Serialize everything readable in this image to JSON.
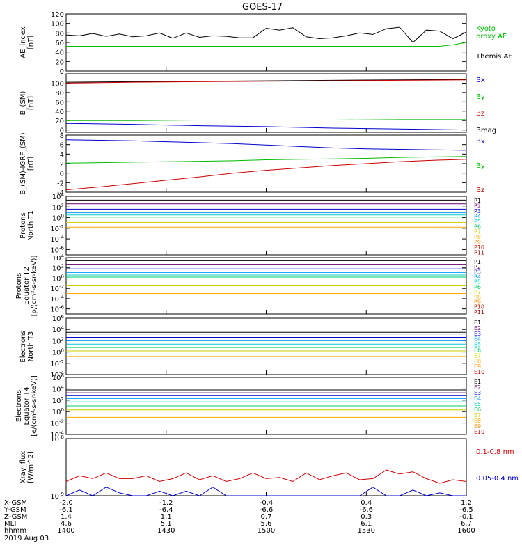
{
  "title": "GOES-17",
  "colors": {
    "black": "#000000",
    "red": "#cc0000",
    "green": "#00bb00",
    "blue": "#0000cc",
    "p_colors": [
      "#000000",
      "#660066",
      "#0000cc",
      "#0099ff",
      "#00cccc",
      "#00cc66",
      "#cccc00",
      "#ffaa00",
      "#ff8800",
      "#cc2200",
      "#990000"
    ],
    "e_colors": [
      "#000000",
      "#660066",
      "#0000cc",
      "#0099ff",
      "#00cccc",
      "#00cc66",
      "#cccc00",
      "#ffaa00",
      "#ff8800",
      "#cc0000"
    ]
  },
  "footer": {
    "rows": [
      {
        "label": "X-GSM",
        "values": [
          "-2.0",
          "-1.2",
          "-0.4",
          "0.4",
          "1.2"
        ]
      },
      {
        "label": "Y-GSM",
        "values": [
          "-6.1",
          "-6.4",
          "-6.6",
          "-6.6",
          "-6.5"
        ]
      },
      {
        "label": "Z-GSM",
        "values": [
          "1.4",
          "1.1",
          "0.7",
          "0.3",
          "-0.1"
        ]
      },
      {
        "label": "MLT",
        "values": [
          "4.6",
          "5.1",
          "5.6",
          "6.1",
          "6.7"
        ]
      },
      {
        "label": "hhmm",
        "values": [
          "1400",
          "1430",
          "1500",
          "1530",
          "1600"
        ]
      }
    ],
    "date": "2019 Aug 03"
  },
  "chart_data": [
    {
      "type": "line",
      "ylabel": [
        "AE_index",
        "[nT]"
      ],
      "ylim": [
        0,
        120
      ],
      "yticks": [
        "0",
        "20",
        "40",
        "60",
        "80",
        "100",
        "120"
      ],
      "legend": [
        {
          "text": "Kyoto",
          "color": "#00bb00"
        },
        {
          "text": "proxy AE",
          "color": "#00bb00"
        },
        {
          "text": "Themis AE",
          "color": "#000000"
        }
      ],
      "x": [
        0,
        4,
        8,
        12,
        16,
        20,
        24,
        28,
        32,
        36,
        40,
        44,
        48,
        52,
        56,
        60,
        64,
        68,
        72,
        76,
        80,
        84,
        88,
        92,
        96,
        100,
        104,
        108,
        112,
        116,
        120
      ],
      "series": [
        {
          "color": "#000000",
          "values": [
            76,
            74,
            79,
            73,
            78,
            72,
            74,
            80,
            69,
            80,
            71,
            74,
            73,
            70,
            70,
            90,
            86,
            91,
            72,
            68,
            70,
            74,
            80,
            77,
            89,
            92,
            60,
            86,
            84,
            68,
            82
          ]
        },
        {
          "color": "#00bb00",
          "values": [
            52,
            52,
            52,
            52,
            52,
            52,
            52,
            52,
            52,
            52,
            52,
            52,
            52,
            52,
            52,
            52,
            52,
            52,
            52,
            52,
            52,
            52,
            52,
            52,
            52,
            52,
            52,
            52,
            52,
            55,
            60
          ]
        }
      ]
    },
    {
      "type": "line",
      "ylabel": [
        "B_(SM)",
        "[nT]"
      ],
      "ylim": [
        -5,
        120
      ],
      "yticks": [
        "0",
        "20",
        "40",
        "60",
        "80",
        "100"
      ],
      "legend": [
        {
          "text": "Bx",
          "color": "#0000cc"
        },
        {
          "text": "By",
          "color": "#00bb00"
        },
        {
          "text": "Bz",
          "color": "#cc0000"
        },
        {
          "text": "Bmag",
          "color": "#000000"
        }
      ],
      "x": [
        0,
        20,
        40,
        60,
        80,
        100,
        120
      ],
      "series": [
        {
          "color": "#000000",
          "values": [
            102,
            103,
            104,
            105,
            106,
            107,
            108
          ]
        },
        {
          "color": "#cc0000",
          "values": [
            100,
            102,
            103,
            104,
            105,
            106,
            107
          ]
        },
        {
          "color": "#00bb00",
          "values": [
            20,
            20,
            21,
            21,
            21,
            22,
            22
          ]
        },
        {
          "color": "#0000cc",
          "values": [
            14,
            12,
            9,
            7,
            4,
            2,
            0
          ]
        }
      ]
    },
    {
      "type": "line",
      "ylabel": [
        "B_(SM)-IGRF_(SM)",
        "[nT]"
      ],
      "ylim": [
        -4,
        8
      ],
      "yticks": [
        "-4",
        "-2",
        "0",
        "2",
        "4",
        "6",
        "8"
      ],
      "legend": [
        {
          "text": "Bx",
          "color": "#0000cc"
        },
        {
          "text": "By",
          "color": "#00bb00"
        },
        {
          "text": "Bz",
          "color": "#cc0000"
        }
      ],
      "x": [
        0,
        10,
        20,
        30,
        40,
        50,
        60,
        70,
        80,
        90,
        100,
        110,
        120
      ],
      "series": [
        {
          "color": "#0000cc",
          "values": [
            7.0,
            6.9,
            6.8,
            6.6,
            6.4,
            6.2,
            5.9,
            5.6,
            5.3,
            5.1,
            5.0,
            4.9,
            4.8
          ]
        },
        {
          "color": "#00bb00",
          "values": [
            2.1,
            2.2,
            2.3,
            2.4,
            2.5,
            2.6,
            2.8,
            2.9,
            3.0,
            3.1,
            3.3,
            3.4,
            3.5
          ]
        },
        {
          "color": "#cc0000",
          "values": [
            -3.5,
            -2.9,
            -2.2,
            -1.5,
            -0.8,
            0.0,
            0.6,
            1.1,
            1.6,
            2.0,
            2.4,
            2.7,
            2.9
          ]
        }
      ]
    },
    {
      "type": "line",
      "ylabel": [
        "Protons",
        "North T1"
      ],
      "yscale": "log",
      "ylim": [
        -7,
        4
      ],
      "yticks": [
        "10^4",
        "10^2",
        "10^0",
        "10^-2",
        "10^-4",
        "10^-6"
      ],
      "legend_labels": [
        "P1",
        "P2",
        "P3",
        "P4",
        "P5",
        "P6",
        "P7",
        "P8",
        "P9",
        "P10",
        "P11"
      ],
      "series_levels": [
        3.3,
        2.6,
        1.6,
        0.9,
        0.5,
        0.1,
        -0.9,
        -1.8
      ]
    },
    {
      "type": "line",
      "ylabel": [
        "Protons",
        "Equator T2",
        "[p/(cm²-s-sr-keV)]"
      ],
      "yscale": "log",
      "ylim": [
        -7,
        4
      ],
      "yticks": [
        "10^4",
        "10^2",
        "10^0",
        "10^-2",
        "10^-4",
        "10^-6"
      ],
      "legend_labels": [
        "P1",
        "P2",
        "P3",
        "P4",
        "P5",
        "P6",
        "P7",
        "P8",
        "P9",
        "P10",
        "P11"
      ],
      "series_levels": [
        3.4,
        2.7,
        1.8,
        1.1,
        0.6,
        0.2,
        -1.5,
        -3.0
      ]
    },
    {
      "type": "line",
      "ylabel": [
        "Electrons",
        "North T3"
      ],
      "yscale": "log",
      "ylim": [
        -4,
        6
      ],
      "yticks": [
        "10^6",
        "10^4",
        "10^2",
        "10^0",
        "10^-2",
        "10^-4"
      ],
      "legend_labels": [
        "E1",
        "E2",
        "E3",
        "E4",
        "E5",
        "E6",
        "E7",
        "E8",
        "E9",
        "E10"
      ],
      "series_levels": [
        3.5,
        3.2,
        2.6,
        2.0,
        1.4,
        0.8,
        0.2,
        -0.8
      ]
    },
    {
      "type": "line",
      "ylabel": [
        "Electrons",
        "Equator T4",
        "[e/(cm²-s-sr-keV)]"
      ],
      "yscale": "log",
      "ylim": [
        -4,
        6
      ],
      "yticks": [
        "10^6",
        "10^4",
        "10^2",
        "10^0",
        "10^-2",
        "10^-4"
      ],
      "legend_labels": [
        "E1",
        "E2",
        "E3",
        "E4",
        "E5",
        "E6",
        "E7",
        "E8",
        "E9",
        "E10"
      ],
      "series_levels": [
        3.8,
        3.3,
        2.8,
        2.3,
        1.7,
        1.0,
        0.3,
        -1.0
      ]
    },
    {
      "type": "line",
      "ylabel": [
        "Xray_flux",
        "[W/m^2]"
      ],
      "yscale": "log",
      "ylim": [
        -9,
        -8
      ],
      "yticks": [
        "10^-8",
        "10^-9"
      ],
      "legend": [
        {
          "text": "0.1-0.8 nm",
          "color": "#cc0000"
        },
        {
          "text": "0.05-0.4 nm",
          "color": "#0000cc"
        }
      ],
      "x": [
        0,
        4,
        8,
        12,
        16,
        20,
        24,
        28,
        32,
        36,
        40,
        44,
        48,
        52,
        56,
        60,
        64,
        68,
        72,
        76,
        80,
        84,
        88,
        92,
        96,
        100,
        104,
        108,
        112,
        116,
        120
      ],
      "series": [
        {
          "color": "#cc0000",
          "values": [
            -8.75,
            -8.65,
            -8.7,
            -8.6,
            -8.7,
            -8.7,
            -8.65,
            -8.75,
            -8.7,
            -8.6,
            -8.72,
            -8.65,
            -8.75,
            -8.7,
            -8.6,
            -8.7,
            -8.68,
            -8.75,
            -8.6,
            -8.72,
            -8.65,
            -8.6,
            -8.72,
            -8.7,
            -8.55,
            -8.62,
            -8.58,
            -8.7,
            -8.78,
            -8.72,
            -8.75
          ]
        },
        {
          "color": "#0000cc",
          "values": [
            -9.0,
            -8.9,
            -9.0,
            -8.85,
            -8.95,
            -9.0,
            -9.0,
            -8.92,
            -9.0,
            -8.92,
            -9.0,
            -8.85,
            -9.0,
            -9.0,
            -9.0,
            -9.0,
            -9.0,
            -9.0,
            -9.0,
            -9.0,
            -9.0,
            -9.0,
            -9.0,
            -8.85,
            -9.0,
            -9.0,
            -8.9,
            -9.0,
            -8.95,
            -9.0,
            -9.0
          ]
        }
      ]
    }
  ]
}
